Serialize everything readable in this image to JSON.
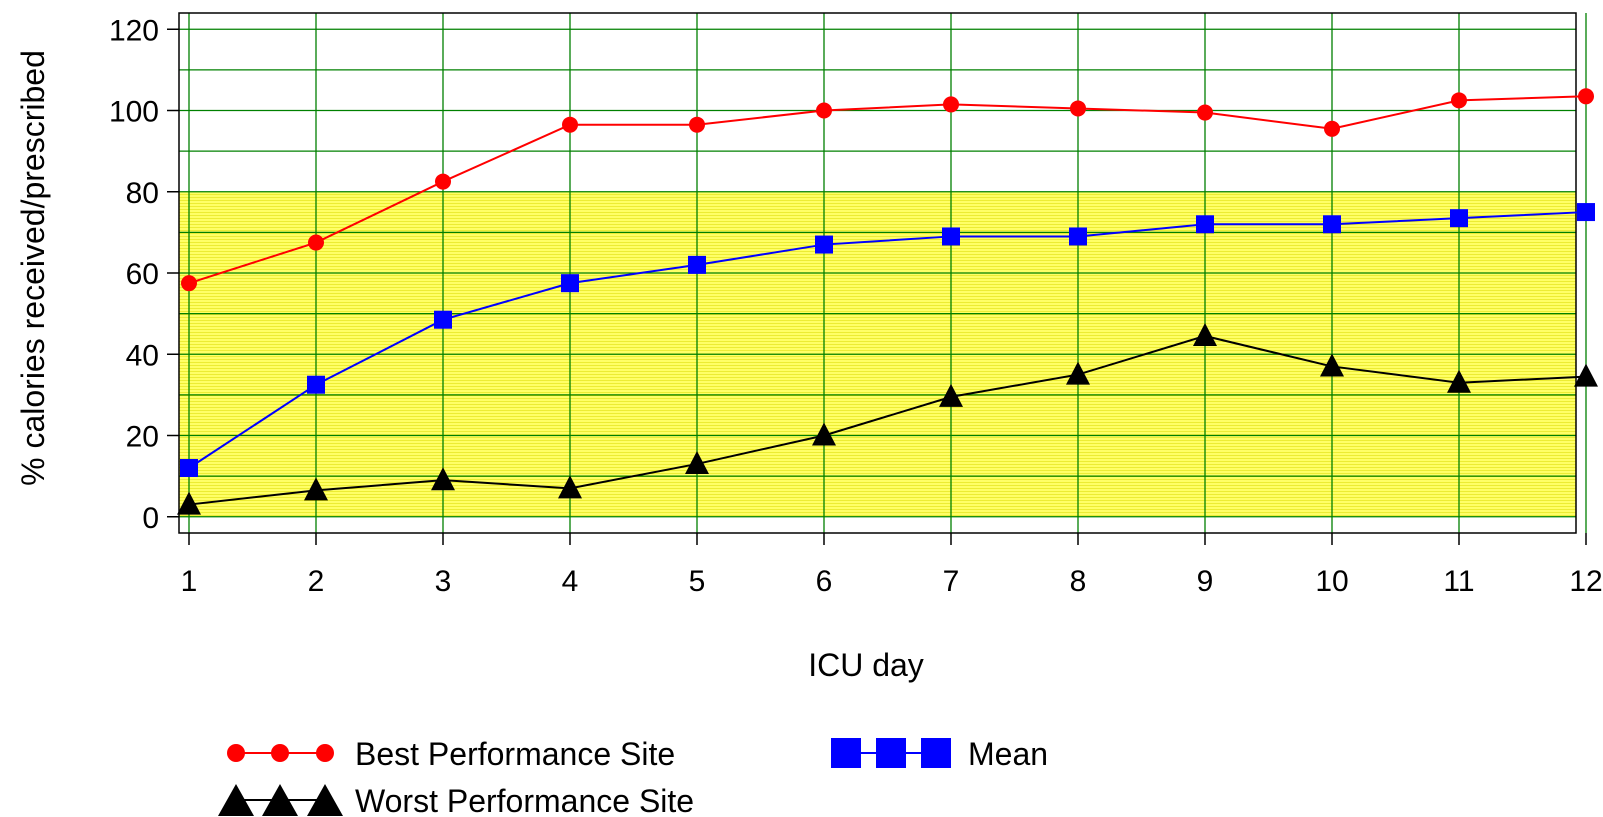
{
  "chart_data": {
    "type": "line",
    "title": "",
    "xlabel": "ICU day",
    "ylabel": "% calories received/prescribed",
    "x": [
      1,
      2,
      3,
      4,
      5,
      6,
      7,
      8,
      9,
      10,
      11,
      12
    ],
    "xlim": [
      1,
      12
    ],
    "ylim": [
      -4,
      124
    ],
    "yticks": [
      0,
      20,
      40,
      60,
      80,
      100,
      120
    ],
    "xticks": [
      1,
      2,
      3,
      4,
      5,
      6,
      7,
      8,
      9,
      10,
      11,
      12
    ],
    "grid": true,
    "shaded_band": {
      "from": 0,
      "to": 80,
      "color": "#ffff66"
    },
    "legend_position": "bottom",
    "series": [
      {
        "name": "Best Performance Site",
        "color": "#ff0000",
        "marker": "circle",
        "values": [
          57.5,
          67.5,
          82.5,
          96.5,
          96.5,
          100,
          101.5,
          100.5,
          99.5,
          95.5,
          102.5,
          103.5
        ]
      },
      {
        "name": "Mean",
        "color": "#0000ff",
        "marker": "square",
        "values": [
          12,
          32.5,
          48.5,
          57.5,
          62,
          67,
          69,
          69,
          72,
          72,
          73.5,
          75
        ]
      },
      {
        "name": "Worst Performance Site",
        "color": "#000000",
        "marker": "triangle",
        "values": [
          3,
          6.5,
          9,
          7,
          13,
          20,
          29.5,
          35,
          44.5,
          37,
          33,
          34.5
        ]
      }
    ]
  },
  "colors": {
    "grid": "#008000",
    "band": "#ffff66",
    "band_lines": "#d8d800",
    "background": "#ffffff"
  }
}
